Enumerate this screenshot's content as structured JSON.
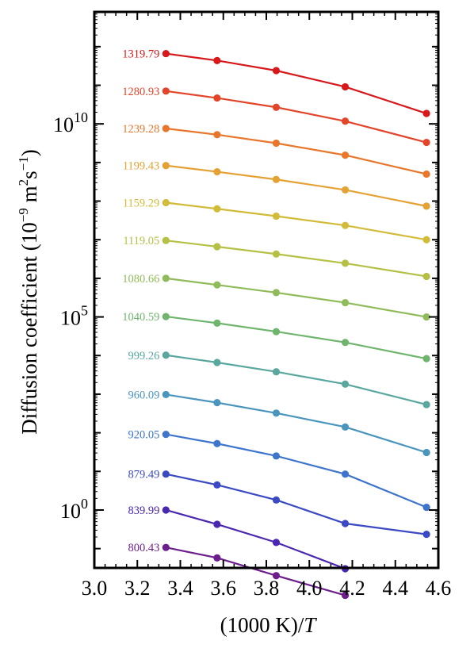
{
  "chart_data": {
    "type": "line",
    "xlabel_main": "(1000 K)/",
    "xlabel_var": "T",
    "ylabel_main": "Diffusion coefficient (10",
    "ylabel_exp1": "−9",
    "ylabel_unit": " m",
    "ylabel_exp2": "2",
    "ylabel_unit2": "s",
    "ylabel_exp3": "−1",
    "ylabel_close": ")",
    "xlim": [
      3.0,
      4.6
    ],
    "ylim_log10": [
      -1.5,
      12.9
    ],
    "y_scale": "log",
    "x_ticks": [
      "3.0",
      "3.2",
      "3.4",
      "3.6",
      "3.8",
      "4.0",
      "4.2",
      "4.4",
      "4.6"
    ],
    "y_ticks": [
      {
        "base": "10",
        "exp": "0",
        "value_log10": 0
      },
      {
        "base": "10",
        "exp": "5",
        "value_log10": 5
      },
      {
        "base": "10",
        "exp": "10",
        "value_log10": 10
      }
    ],
    "grid": false,
    "series": [
      {
        "name": "1319.79",
        "color": "#d7191c",
        "x": [
          3.333,
          3.571,
          3.846,
          4.167,
          4.545
        ],
        "log10_y": [
          11.82,
          11.64,
          11.38,
          10.96,
          10.27
        ]
      },
      {
        "name": "1280.93",
        "color": "#e2452a",
        "x": [
          3.333,
          3.571,
          3.846,
          4.167,
          4.545
        ],
        "log10_y": [
          10.85,
          10.67,
          10.43,
          10.07,
          9.52
        ]
      },
      {
        "name": "1239.28",
        "color": "#e8772c",
        "x": [
          3.333,
          3.571,
          3.846,
          4.167,
          4.545
        ],
        "log10_y": [
          9.88,
          9.72,
          9.5,
          9.19,
          8.7
        ]
      },
      {
        "name": "1199.43",
        "color": "#e3a233",
        "x": [
          3.333,
          3.571,
          3.846,
          4.167,
          4.545
        ],
        "log10_y": [
          8.92,
          8.76,
          8.56,
          8.29,
          7.87
        ]
      },
      {
        "name": "1159.29",
        "color": "#d3bb3a",
        "x": [
          3.333,
          3.571,
          3.846,
          4.167,
          4.545
        ],
        "log10_y": [
          7.96,
          7.8,
          7.61,
          7.37,
          7.0
        ]
      },
      {
        "name": "1119.05",
        "color": "#b5c045",
        "x": [
          3.333,
          3.571,
          3.846,
          4.167,
          4.545
        ],
        "log10_y": [
          6.98,
          6.82,
          6.63,
          6.39,
          6.05
        ]
      },
      {
        "name": "1080.66",
        "color": "#90bb5b",
        "x": [
          3.333,
          3.571,
          3.846,
          4.167,
          4.545
        ],
        "log10_y": [
          6.0,
          5.83,
          5.63,
          5.37,
          5.0
        ]
      },
      {
        "name": "1040.59",
        "color": "#6fb56e",
        "x": [
          3.333,
          3.571,
          3.846,
          4.167,
          4.545
        ],
        "log10_y": [
          5.01,
          4.84,
          4.62,
          4.34,
          3.92
        ]
      },
      {
        "name": "999.26",
        "color": "#5aa7a0",
        "x": [
          3.333,
          3.571,
          3.846,
          4.167,
          4.545
        ],
        "log10_y": [
          4.01,
          3.82,
          3.58,
          3.26,
          2.73
        ]
      },
      {
        "name": "960.09",
        "color": "#4a95be",
        "x": [
          3.333,
          3.571,
          3.846,
          4.167,
          4.545
        ],
        "log10_y": [
          2.99,
          2.78,
          2.51,
          2.15,
          1.49
        ]
      },
      {
        "name": "920.05",
        "color": "#3f74cc",
        "x": [
          3.333,
          3.571,
          3.846,
          4.167,
          4.545
        ],
        "log10_y": [
          1.96,
          1.72,
          1.4,
          0.93,
          0.07
        ]
      },
      {
        "name": "879.49",
        "color": "#3a49c4",
        "x": [
          3.333,
          3.571,
          3.846,
          4.167,
          4.545
        ],
        "log10_y": [
          0.93,
          0.65,
          0.26,
          -0.35,
          -0.63
        ]
      },
      {
        "name": "839.99",
        "color": "#4a27b1",
        "x": [
          3.333,
          3.571,
          3.846,
          4.167
        ],
        "log10_y": [
          0.0,
          -0.37,
          -0.84,
          -1.52
        ]
      },
      {
        "name": "800.43",
        "color": "#6d1e8d",
        "x": [
          3.333,
          3.571,
          3.846,
          4.167
        ],
        "log10_y": [
          -0.97,
          -1.24,
          -1.7,
          -2.21
        ]
      }
    ]
  }
}
